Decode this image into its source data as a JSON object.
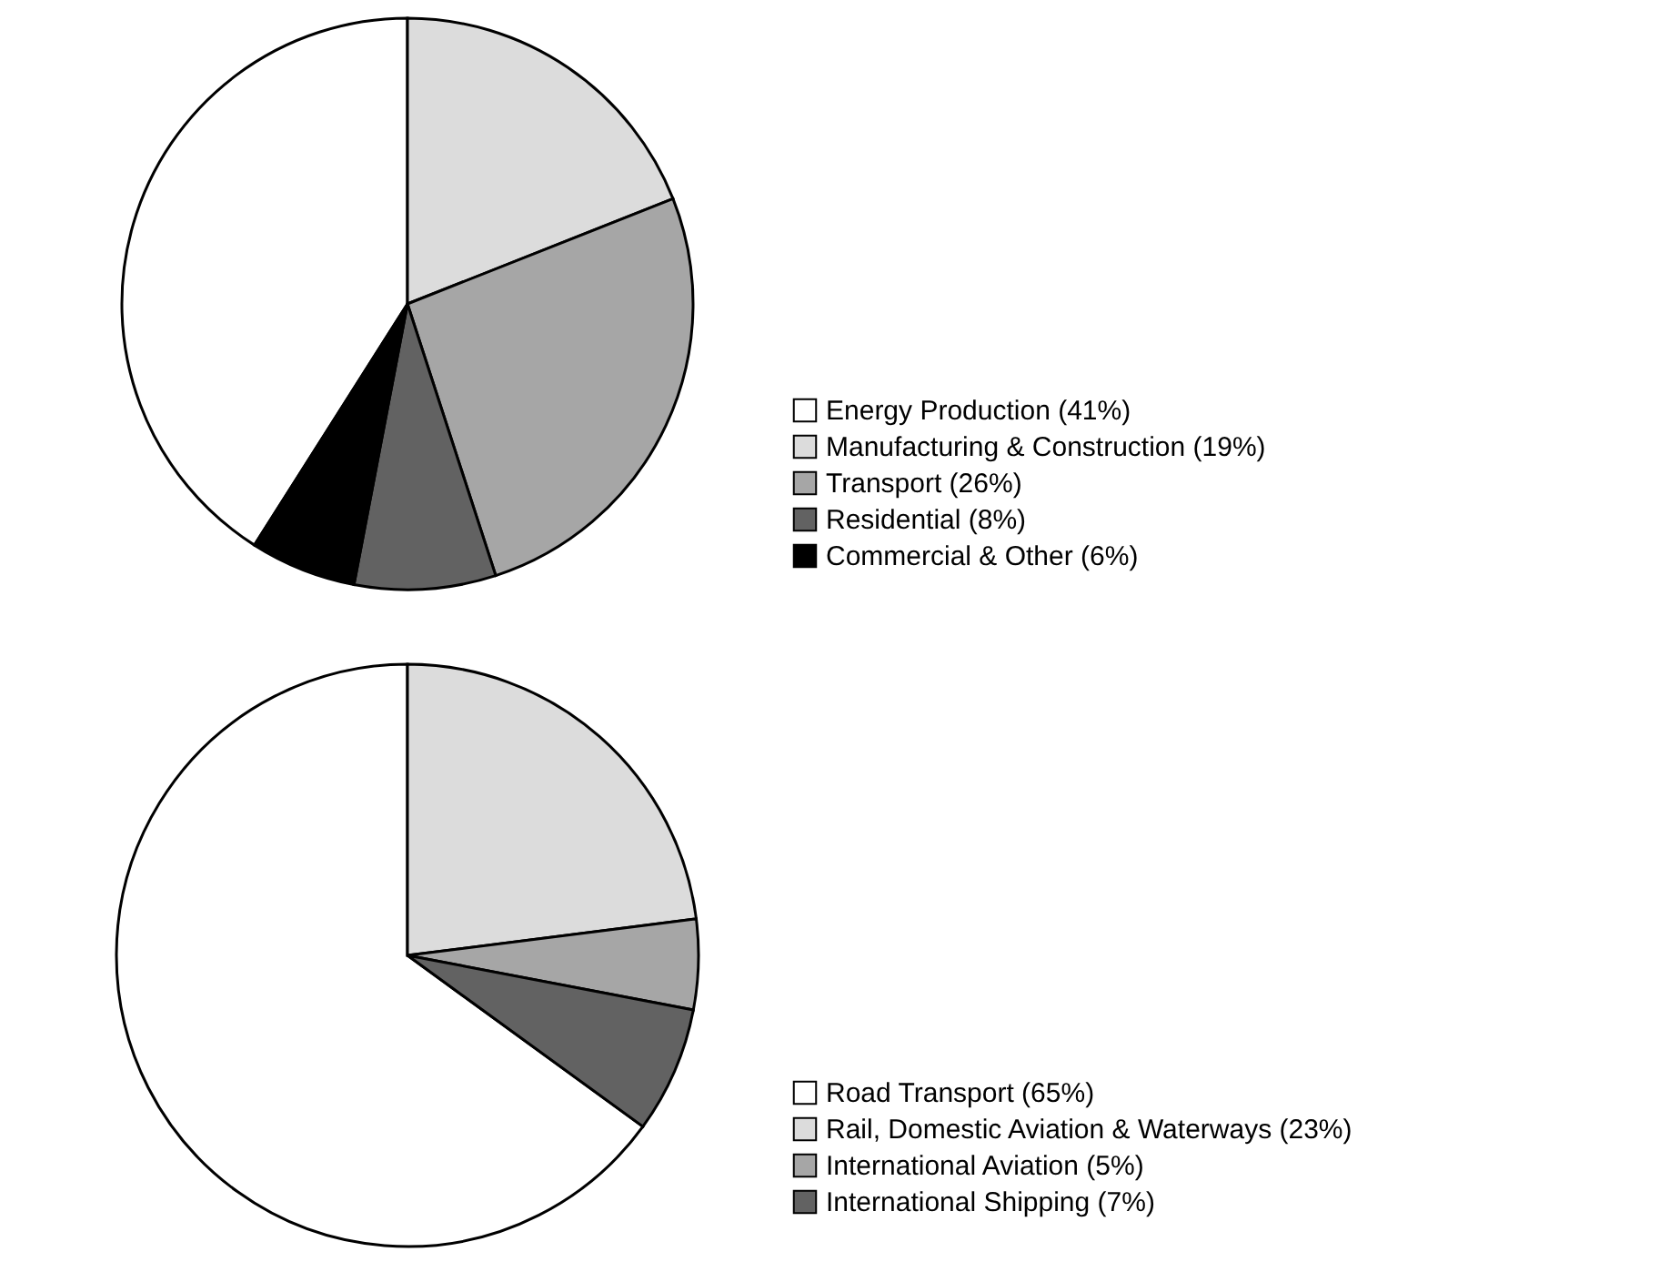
{
  "chart_data": [
    {
      "type": "pie",
      "categories": [
        "Energy Production (41%)",
        "Manufacturing & Construction (19%)",
        "Transport (26%)",
        "Residential (8%)",
        "Commercial & Other (6%)"
      ],
      "values": [
        41,
        19,
        26,
        8,
        6
      ],
      "colors": [
        "#ffffff",
        "#dcdcdc",
        "#a6a6a6",
        "#626262",
        "#000000"
      ],
      "legend": "bottom right"
    },
    {
      "type": "pie",
      "categories": [
        "Road Transport (65%)",
        "Rail, Domestic Aviation & Waterways (23%)",
        "International Aviation (5%)",
        "International Shipping (7%)"
      ],
      "values": [
        65,
        23,
        5,
        7
      ],
      "colors": [
        "#ffffff",
        "#dcdcdc",
        "#a6a6a6",
        "#626262"
      ],
      "legend": "bottom right"
    }
  ]
}
